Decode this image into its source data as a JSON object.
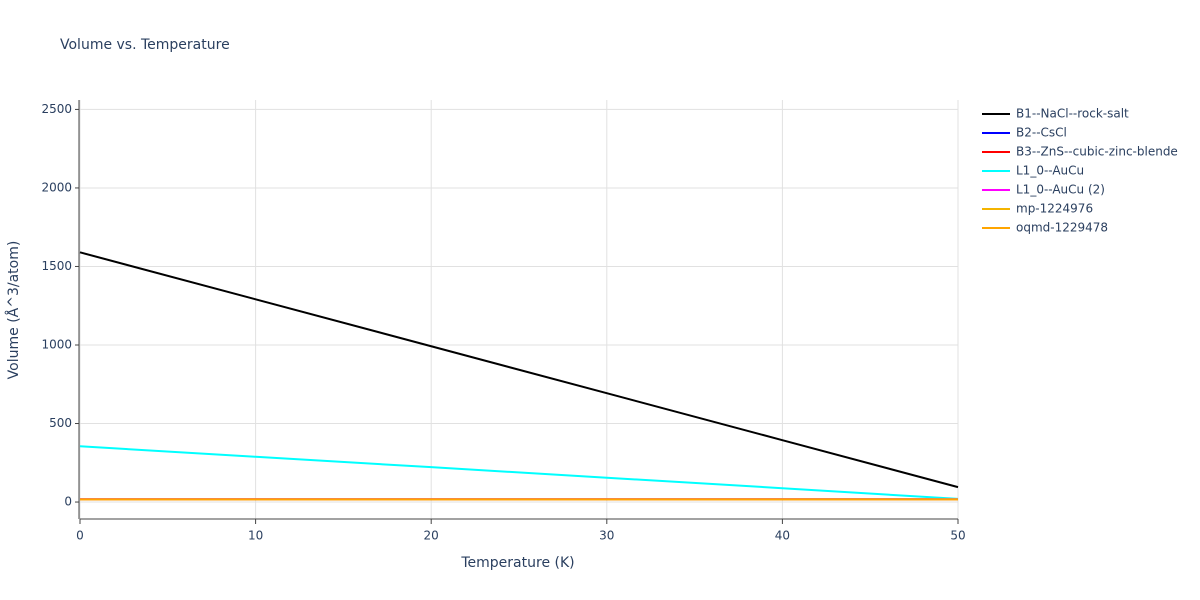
{
  "chart_data": {
    "type": "line",
    "title": "Volume vs. Temperature",
    "x_label": "Temperature (K)",
    "y_label": "Volume (Å^3/atom)",
    "x": [
      0,
      10,
      20,
      30,
      40,
      50
    ],
    "series": [
      {
        "name": "B1--NaCl--rock-salt",
        "color": "#000000",
        "values": [
          1590,
          1291,
          992,
          693,
          394,
          95
        ]
      },
      {
        "name": "B2--CsCl",
        "color": "#0000ff",
        "values": [
          17,
          17,
          17,
          17,
          17,
          17
        ]
      },
      {
        "name": "B3--ZnS--cubic-zinc-blende",
        "color": "#ff0000",
        "values": [
          17,
          17,
          17,
          17,
          17,
          17
        ]
      },
      {
        "name": "L1_0--AuCu",
        "color": "#00ffff",
        "values": [
          355,
          288,
          222,
          155,
          88,
          20
        ]
      },
      {
        "name": "L1_0--AuCu (2)",
        "color": "#ff00ff",
        "values": [
          18,
          18,
          18,
          18,
          18,
          18
        ]
      },
      {
        "name": "mp-1224976",
        "color": "#f4b400",
        "values": [
          17,
          17,
          17,
          17,
          17,
          17
        ]
      },
      {
        "name": "oqmd-1229478",
        "color": "#ffa500",
        "values": [
          17,
          17,
          17,
          17,
          17,
          17
        ]
      }
    ],
    "xlim": [
      0,
      50
    ],
    "xticks": [
      0,
      10,
      20,
      30,
      40,
      50
    ],
    "ylim": [
      -108,
      2560
    ],
    "yticks": [
      0,
      500,
      1000,
      1500,
      2000,
      2500
    ],
    "grid": true,
    "legend": "right"
  }
}
